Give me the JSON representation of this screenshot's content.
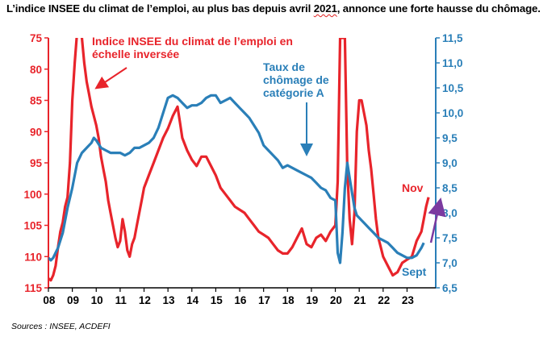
{
  "title_prefix": "L’indice INSEE du climat de l’emploi, au plus bas depuis avril ",
  "title_year": "2021",
  "title_suffix": ", annonce une forte hausse du chômage.",
  "source": "Sources : INSEE, ACDEFI",
  "colors": {
    "climate": "#e8242b",
    "unemployment": "#2a7fb8",
    "arrow_up": "#7b3aa0"
  },
  "chart_data": {
    "type": "line",
    "title": "L’indice INSEE du climat de l’emploi, au plus bas depuis avril 2021, annonce une forte hausse du chômage.",
    "x_ticks": [
      "08",
      "09",
      "10",
      "11",
      "12",
      "13",
      "14",
      "15",
      "16",
      "17",
      "18",
      "19",
      "20",
      "21",
      "22",
      "23"
    ],
    "xlim": [
      2008.0,
      2024.2
    ],
    "y_left": {
      "ticks": [
        "75",
        "80",
        "85",
        "90",
        "95",
        "100",
        "105",
        "110",
        "115"
      ],
      "lim": [
        75,
        115
      ],
      "inverted": true
    },
    "y_right": {
      "ticks": [
        "11,5",
        "11,0",
        "10,5",
        "10,0",
        "9,5",
        "9,0",
        "8,5",
        "8,0",
        "7,5",
        "7,0",
        "6,5"
      ],
      "lim": [
        6.5,
        11.5
      ]
    },
    "grid": false,
    "annotations": {
      "climate_label_1": "Indice INSEE du climat de l’emploi en",
      "climate_label_2": "échelle inversée",
      "unemp_label_1": "Taux de",
      "unemp_label_2": "chômage de",
      "unemp_label_3": "catégorie A",
      "nov": "Nov",
      "sept": "Sept"
    },
    "series": [
      {
        "name": "Indice INSEE du climat de l’emploi en échelle inversée",
        "axis": "left",
        "x": [
          2008.0,
          2008.1,
          2008.2,
          2008.3,
          2008.4,
          2008.5,
          2008.6,
          2008.7,
          2008.8,
          2008.9,
          2009.0,
          2009.1,
          2009.2,
          2009.3,
          2009.4,
          2009.5,
          2009.6,
          2009.7,
          2009.8,
          2009.9,
          2010.0,
          2010.1,
          2010.2,
          2010.3,
          2010.4,
          2010.5,
          2010.6,
          2010.7,
          2010.8,
          2010.9,
          2011.0,
          2011.1,
          2011.2,
          2011.3,
          2011.4,
          2011.5,
          2011.6,
          2011.7,
          2011.8,
          2011.9,
          2012.0,
          2012.2,
          2012.4,
          2012.6,
          2012.8,
          2013.0,
          2013.2,
          2013.4,
          2013.5,
          2013.6,
          2013.8,
          2014.0,
          2014.2,
          2014.4,
          2014.6,
          2014.8,
          2015.0,
          2015.2,
          2015.4,
          2015.6,
          2015.8,
          2016.0,
          2016.2,
          2016.4,
          2016.6,
          2016.8,
          2017.0,
          2017.2,
          2017.4,
          2017.6,
          2017.8,
          2018.0,
          2018.2,
          2018.4,
          2018.6,
          2018.8,
          2019.0,
          2019.2,
          2019.4,
          2019.6,
          2019.8,
          2020.0,
          2020.1,
          2020.2,
          2020.3,
          2020.4,
          2020.5,
          2020.6,
          2020.7,
          2020.8,
          2020.9,
          2021.0,
          2021.1,
          2021.2,
          2021.3,
          2021.4,
          2021.5,
          2021.6,
          2021.7,
          2021.8,
          2021.9,
          2022.0,
          2022.2,
          2022.4,
          2022.6,
          2022.8,
          2023.0,
          2023.2,
          2023.4,
          2023.6,
          2023.7,
          2023.8,
          2023.9
        ],
        "y": [
          113.5,
          113.8,
          113.0,
          111.5,
          108.5,
          106.0,
          104.5,
          102.0,
          100.5,
          95.0,
          85.0,
          79.0,
          74.0,
          73.5,
          75.0,
          79.0,
          82.0,
          84.0,
          86.0,
          87.5,
          89.0,
          91.0,
          94.0,
          96.0,
          98.0,
          101.0,
          103.0,
          105.0,
          107.0,
          108.5,
          107.5,
          104.0,
          106.0,
          109.0,
          110.0,
          108.0,
          107.0,
          105.0,
          103.0,
          101.0,
          99.0,
          97.0,
          95.0,
          93.0,
          91.0,
          89.5,
          87.5,
          86.0,
          88.5,
          91.0,
          93.0,
          94.5,
          95.5,
          94.0,
          94.0,
          95.5,
          97.0,
          99.0,
          100.0,
          101.0,
          102.0,
          102.5,
          103.0,
          104.0,
          105.0,
          106.0,
          106.5,
          107.0,
          108.0,
          109.0,
          109.5,
          109.5,
          108.5,
          107.0,
          105.5,
          108.0,
          108.5,
          107.0,
          106.5,
          107.5,
          106.0,
          105.0,
          98.0,
          75.0,
          75.0,
          75.0,
          96.0,
          104.0,
          108.0,
          103.0,
          90.0,
          85.0,
          85.0,
          87.0,
          89.0,
          93.0,
          96.0,
          100.0,
          104.0,
          107.0,
          108.5,
          110.0,
          111.5,
          113.0,
          112.5,
          111.0,
          110.5,
          110.0,
          107.5,
          106.0,
          104.0,
          102.0,
          100.5
        ]
      },
      {
        "name": "Taux de chômage de catégorie A",
        "axis": "right",
        "x": [
          2008.0,
          2008.1,
          2008.2,
          2008.3,
          2008.4,
          2008.6,
          2008.8,
          2009.0,
          2009.2,
          2009.4,
          2009.6,
          2009.8,
          2009.9,
          2010.0,
          2010.2,
          2010.4,
          2010.6,
          2010.8,
          2011.0,
          2011.2,
          2011.4,
          2011.6,
          2011.8,
          2012.0,
          2012.2,
          2012.4,
          2012.6,
          2012.8,
          2013.0,
          2013.2,
          2013.4,
          2013.6,
          2013.8,
          2014.0,
          2014.2,
          2014.4,
          2014.6,
          2014.8,
          2015.0,
          2015.2,
          2015.4,
          2015.6,
          2015.8,
          2016.0,
          2016.2,
          2016.4,
          2016.6,
          2016.8,
          2017.0,
          2017.2,
          2017.4,
          2017.6,
          2017.8,
          2018.0,
          2018.2,
          2018.4,
          2018.6,
          2018.8,
          2019.0,
          2019.2,
          2019.4,
          2019.6,
          2019.8,
          2020.0,
          2020.1,
          2020.2,
          2020.3,
          2020.4,
          2020.5,
          2020.6,
          2020.7,
          2020.8,
          2020.9,
          2021.0,
          2021.1,
          2021.2,
          2021.4,
          2021.6,
          2021.8,
          2022.0,
          2022.2,
          2022.4,
          2022.6,
          2022.8,
          2023.0,
          2023.2,
          2023.4,
          2023.6,
          2023.7
        ],
        "y": [
          7.1,
          7.05,
          7.1,
          7.2,
          7.3,
          7.6,
          8.1,
          8.5,
          9.0,
          9.2,
          9.3,
          9.4,
          9.5,
          9.45,
          9.3,
          9.25,
          9.2,
          9.2,
          9.2,
          9.15,
          9.2,
          9.3,
          9.3,
          9.35,
          9.4,
          9.5,
          9.7,
          10.0,
          10.3,
          10.35,
          10.3,
          10.2,
          10.1,
          10.15,
          10.15,
          10.2,
          10.3,
          10.35,
          10.35,
          10.2,
          10.25,
          10.3,
          10.2,
          10.1,
          10.0,
          9.9,
          9.75,
          9.6,
          9.35,
          9.25,
          9.15,
          9.05,
          8.9,
          8.95,
          8.9,
          8.85,
          8.8,
          8.75,
          8.7,
          8.6,
          8.5,
          8.45,
          8.3,
          8.25,
          7.2,
          7.0,
          7.6,
          8.5,
          9.0,
          8.7,
          8.4,
          8.1,
          7.95,
          7.9,
          7.85,
          7.8,
          7.7,
          7.6,
          7.5,
          7.45,
          7.4,
          7.3,
          7.2,
          7.15,
          7.1,
          7.1,
          7.15,
          7.3,
          7.4
        ]
      }
    ]
  }
}
